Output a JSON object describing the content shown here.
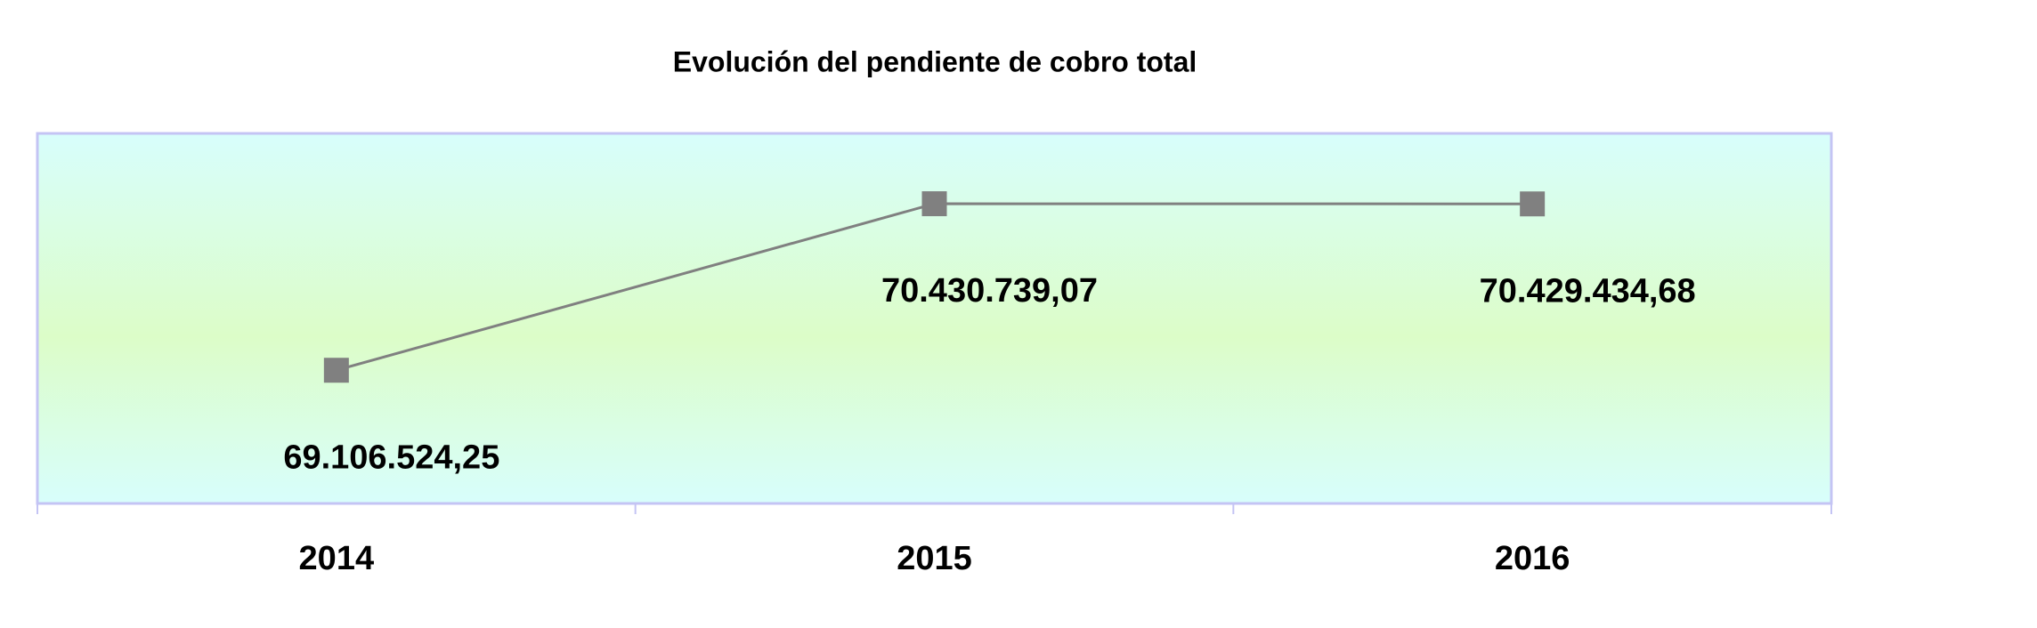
{
  "chart_data": {
    "type": "line",
    "title": "Evolución del pendiente de cobro total",
    "categories": [
      "2014",
      "2015",
      "2016"
    ],
    "values": [
      69106524.25,
      70430739.07,
      70429434.68
    ],
    "value_labels": [
      "69.106.524,25",
      "70.430.739,07",
      "70.429.434,68"
    ],
    "color": "#808080"
  }
}
